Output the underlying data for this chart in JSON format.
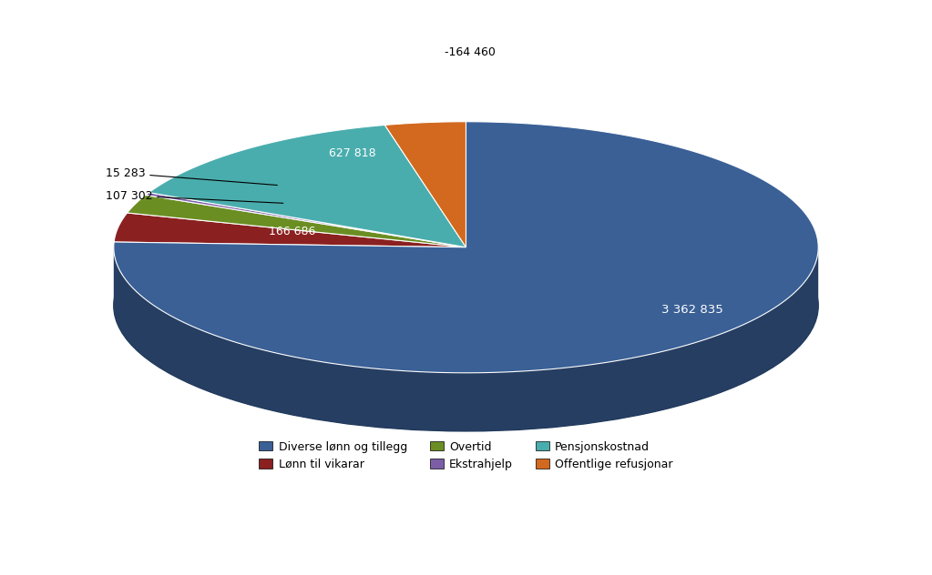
{
  "labels": [
    "Diverse lønn og tillegg",
    "Lønn til vikarar",
    "Overtid",
    "Ekstrahjelp",
    "Pensjonskostnad",
    "Offentlige refusjonar"
  ],
  "values": [
    3362835,
    166686,
    107302,
    15283,
    627818,
    164460
  ],
  "colors": [
    "#3A6096",
    "#8B2020",
    "#6B8E23",
    "#7B5EA7",
    "#4AADAD",
    "#D2691E"
  ],
  "display_labels": [
    "3 362 835",
    "166 686",
    "107 302",
    "15 283",
    "627 818",
    "-164 460"
  ],
  "background_color": "#FFFFFF",
  "legend_labels": [
    "Diverse lønn og tillegg",
    "Lønn til vikarar",
    "Overtid",
    "Ekstrahjelp",
    "Pensjonskostnad",
    "Offentlige refusjonar"
  ]
}
